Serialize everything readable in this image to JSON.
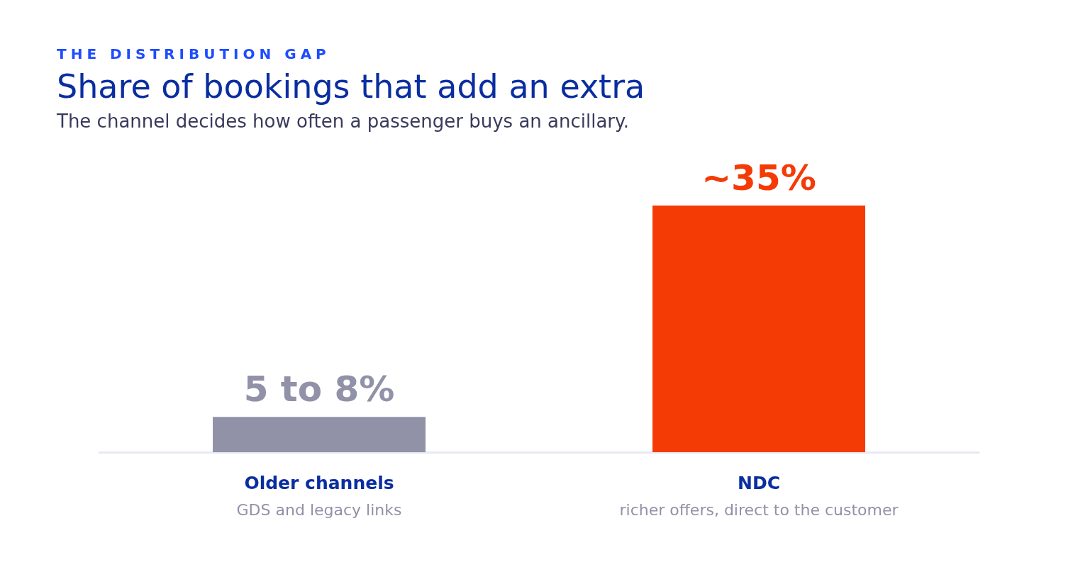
{
  "chart_data": {
    "type": "bar",
    "title": "Share of bookings that add an extra",
    "subtitle": "The channel decides how often a passenger buys an ancillary.",
    "annotations": [
      "THE DISTRIBUTION GAP"
    ],
    "categories": [
      "Older channels\nGDS and legacy links",
      "NDC\nricher offers, direct to the customer"
    ],
    "values": [
      5,
      35
    ],
    "colors": [
      "#9191a8",
      "#f53b05"
    ],
    "value_labels": [
      "5 to 8%",
      "~35%"
    ]
  }
}
